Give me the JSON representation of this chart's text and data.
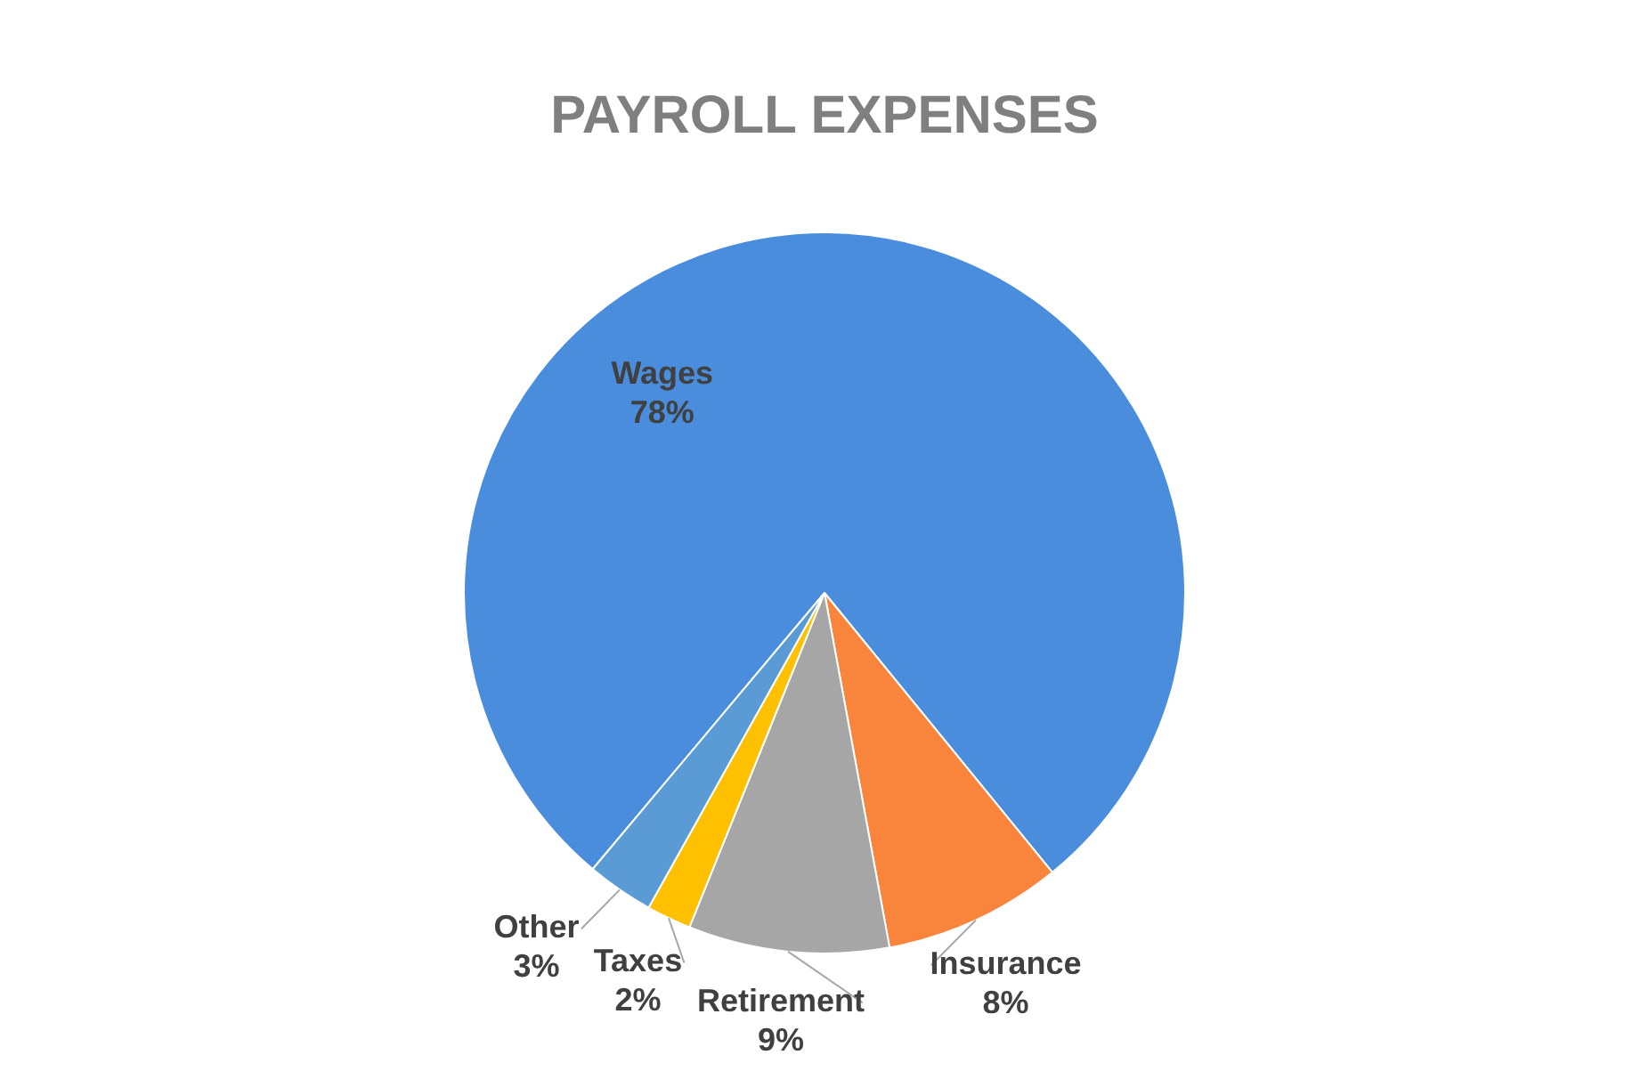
{
  "chart_data": {
    "type": "pie",
    "title": "PAYROLL EXPENSES",
    "categories": [
      "Wages",
      "Insurance",
      "Retirement",
      "Taxes",
      "Other"
    ],
    "values": [
      78,
      8,
      9,
      2,
      3
    ],
    "colors": [
      "#4a8ddc",
      "#f9853c",
      "#a6a6a6",
      "#ffc000",
      "#5b9bd5"
    ],
    "value_labels": [
      "78%",
      "8%",
      "9%",
      "2%",
      "3%"
    ],
    "legend": false
  }
}
